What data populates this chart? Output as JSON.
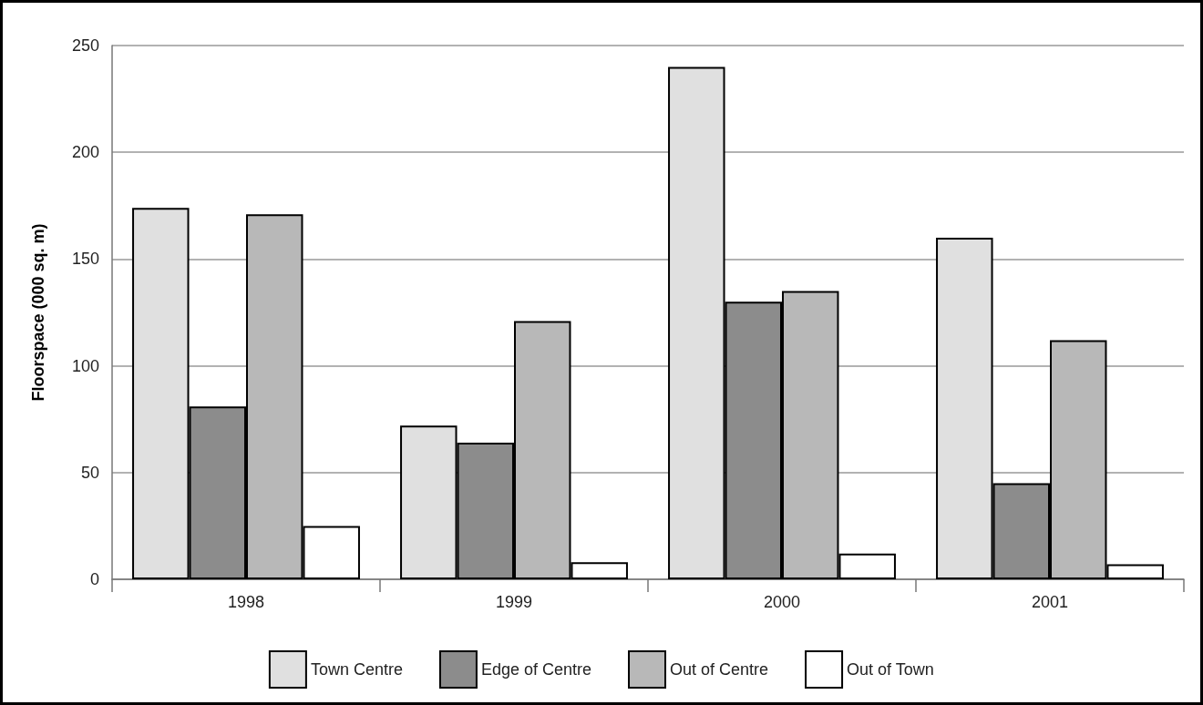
{
  "chart_data": {
    "type": "bar",
    "ylabel": "Floorspace (000 sq. m)",
    "categories": [
      "1998",
      "1999",
      "2000",
      "2001"
    ],
    "series": [
      {
        "name": "Town Centre",
        "color": "#e0e0e0",
        "values": [
          174,
          72,
          240,
          160
        ]
      },
      {
        "name": "Edge of Centre",
        "color": "#8c8c8c",
        "values": [
          81,
          64,
          130,
          45
        ]
      },
      {
        "name": "Out of Centre",
        "color": "#b8b8b8",
        "values": [
          171,
          121,
          135,
          112
        ]
      },
      {
        "name": "Out of Town",
        "color": "#ffffff",
        "values": [
          25,
          8,
          12,
          7
        ]
      }
    ],
    "ylim": [
      0,
      250
    ],
    "yticks": [
      0,
      50,
      100,
      150,
      200,
      250
    ],
    "grid": "y",
    "legend": "bottom"
  }
}
